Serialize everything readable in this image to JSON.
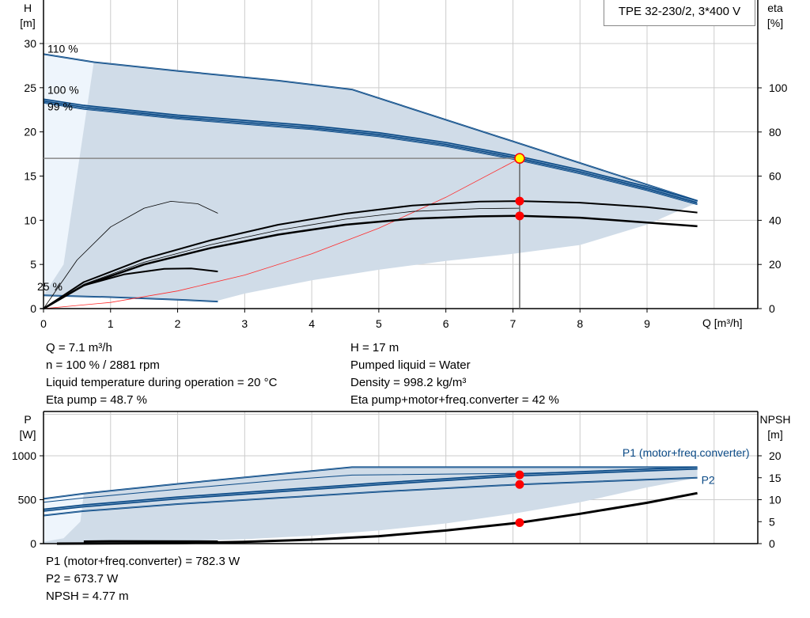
{
  "chart_data": [
    {
      "type": "line",
      "title": "TPE 32-230/2, 3*400 V",
      "xlabel": "Q [m³/h]",
      "ylabel_left": [
        "H",
        "[m]"
      ],
      "ylabel_right": [
        "eta",
        "[%]"
      ],
      "xlim": [
        0,
        10
      ],
      "ylim_left": [
        0,
        30
      ],
      "ylim_right": [
        0,
        120
      ],
      "xticks": [
        0,
        1,
        2,
        3,
        4,
        5,
        6,
        7,
        8,
        9
      ],
      "yticks_left": [
        0,
        5,
        10,
        15,
        20,
        25,
        30
      ],
      "yticks_right": [
        0,
        20,
        40,
        60,
        80,
        100
      ],
      "grid": true,
      "speed_labels": [
        {
          "text": "110 %",
          "x": 0,
          "y": 29.4
        },
        {
          "text": "100 %",
          "x": 0,
          "y": 24.6
        },
        {
          "text": "99 %",
          "x": 0,
          "y": 24.3
        },
        {
          "text": "25 %",
          "x": 0,
          "y": 2.5
        }
      ],
      "operating_area": {
        "upper": [
          [
            0,
            28.8
          ],
          [
            0.75,
            27.9
          ],
          [
            2,
            26.9
          ],
          [
            3.5,
            25.8
          ],
          [
            4.6,
            24.8
          ],
          [
            9.75,
            12.2
          ]
        ],
        "lower": [
          [
            9.75,
            12.0
          ],
          [
            9,
            9.5
          ],
          [
            8,
            7.2
          ],
          [
            7,
            6.2
          ],
          [
            6,
            5.4
          ],
          [
            5,
            4.4
          ],
          [
            4,
            3.2
          ],
          [
            3,
            1.7
          ],
          [
            2.6,
            0.9
          ]
        ],
        "lower_speed": [
          [
            2.6,
            0.8
          ],
          [
            1.5,
            1.1
          ],
          [
            0,
            1.5
          ]
        ]
      },
      "series": [
        {
          "axis": "left",
          "color": "#0b4a86",
          "width": 2,
          "points": [
            [
              0,
              28.8
            ],
            [
              0.75,
              27.9
            ],
            [
              2,
              26.9
            ],
            [
              3.5,
              25.8
            ],
            [
              4.6,
              24.8
            ],
            [
              9.75,
              12.2
            ]
          ]
        },
        {
          "axis": "left",
          "color": "#0b4a86",
          "width": 4,
          "points": [
            [
              0,
              23.6
            ],
            [
              0.6,
              22.9
            ],
            [
              2,
              21.8
            ],
            [
              3,
              21.2
            ],
            [
              4,
              20.6
            ],
            [
              5,
              19.8
            ],
            [
              6,
              18.7
            ],
            [
              7.1,
              17.1
            ],
            [
              8,
              15.6
            ],
            [
              9,
              13.7
            ],
            [
              9.75,
              12.1
            ]
          ]
        },
        {
          "axis": "left",
          "color": "#0b4a86",
          "width": 2,
          "points": [
            [
              0,
              23.3
            ],
            [
              0.6,
              22.6
            ],
            [
              2,
              21.5
            ],
            [
              3,
              20.9
            ],
            [
              4,
              20.3
            ],
            [
              5,
              19.5
            ],
            [
              6,
              18.4
            ],
            [
              7.1,
              16.8
            ],
            [
              8,
              15.3
            ],
            [
              9,
              13.4
            ],
            [
              9.75,
              11.8
            ]
          ]
        },
        {
          "axis": "left",
          "color": "#0b4a86",
          "width": 2,
          "points": [
            [
              0,
              1.5
            ],
            [
              1,
              1.3
            ],
            [
              2,
              1.0
            ],
            [
              2.6,
              0.8
            ]
          ]
        },
        {
          "axis": "left",
          "color": "#ff2a2a",
          "width": 0.8,
          "points": [
            [
              0,
              0
            ],
            [
              1,
              0.7
            ],
            [
              2,
              2.0
            ],
            [
              3,
              3.8
            ],
            [
              4,
              6.2
            ],
            [
              5,
              9.1
            ],
            [
              6,
              12.6
            ],
            [
              7.1,
              17
            ]
          ]
        },
        {
          "axis": "right",
          "color": "#000",
          "width": 2.5,
          "points": [
            [
              0,
              0
            ],
            [
              0.6,
              10.5
            ],
            [
              1.5,
              20
            ],
            [
              2.5,
              27.5
            ],
            [
              3.5,
              33.5
            ],
            [
              4.5,
              38
            ],
            [
              5.5,
              40.7
            ],
            [
              6.5,
              41.8
            ],
            [
              7.1,
              42
            ],
            [
              8,
              41.2
            ],
            [
              9,
              39
            ],
            [
              9.75,
              37.3
            ]
          ]
        },
        {
          "axis": "right",
          "color": "#000",
          "width": 2,
          "points": [
            [
              0,
              0
            ],
            [
              0.6,
              12
            ],
            [
              1.5,
              22.5
            ],
            [
              2.5,
              31
            ],
            [
              3.5,
              38
            ],
            [
              4.5,
              43
            ],
            [
              5.5,
              46.7
            ],
            [
              6.5,
              48.5
            ],
            [
              7.1,
              48.7
            ],
            [
              8,
              48
            ],
            [
              9,
              46
            ],
            [
              9.75,
              43.5
            ]
          ]
        },
        {
          "axis": "right",
          "color": "#000",
          "width": 0.8,
          "points": [
            [
              0,
              0
            ],
            [
              0.6,
              11
            ],
            [
              1.5,
              21
            ],
            [
              2.5,
              29
            ],
            [
              3.5,
              35.5
            ],
            [
              4.5,
              40.5
            ],
            [
              5.5,
              44
            ],
            [
              6.5,
              45.3
            ],
            [
              7.1,
              45.5
            ]
          ]
        },
        {
          "axis": "right",
          "color": "#000",
          "width": 0.8,
          "points": [
            [
              0,
              0
            ],
            [
              0.5,
              22
            ],
            [
              1,
              37
            ],
            [
              1.5,
              45.5
            ],
            [
              1.9,
              48.6
            ],
            [
              2.3,
              47.5
            ],
            [
              2.6,
              43.2
            ]
          ]
        },
        {
          "axis": "right",
          "color": "#000",
          "width": 2,
          "points": [
            [
              0.6,
              10.5
            ],
            [
              1.2,
              15.5
            ],
            [
              1.8,
              18
            ],
            [
              2.2,
              18.2
            ],
            [
              2.6,
              16.8
            ]
          ]
        }
      ],
      "operating_point": {
        "Q": 7.1,
        "H": 17,
        "eta_pump": 48.7,
        "eta_total": 42
      }
    },
    {
      "type": "line",
      "xlim": [
        0,
        10
      ],
      "ylabel_left": [
        "P",
        "[W]"
      ],
      "ylabel_right": [
        "NPSH",
        "[m]"
      ],
      "ylim_left": [
        0,
        1500
      ],
      "ylim_right": [
        0,
        30
      ],
      "yticks_left": [
        0,
        500,
        1000
      ],
      "yticks_right": [
        0,
        5,
        10,
        15,
        20
      ],
      "grid": true,
      "series_labels": [
        {
          "text": "P1 (motor+freq.converter)",
          "x": 9.4,
          "y": 990
        },
        {
          "text": "P2",
          "x": 9.6,
          "y": 680
        }
      ],
      "operating_area": {
        "upper": [
          [
            0,
            510
          ],
          [
            0.6,
            570
          ],
          [
            2,
            680
          ],
          [
            3.5,
            790
          ],
          [
            4.6,
            870
          ],
          [
            9.75,
            870
          ]
        ],
        "lower": [
          [
            9.75,
            750
          ],
          [
            9,
            640
          ],
          [
            8,
            470
          ],
          [
            7,
            340
          ],
          [
            6,
            230
          ],
          [
            5,
            150
          ],
          [
            4,
            90
          ],
          [
            3,
            50
          ],
          [
            2,
            30
          ],
          [
            0.7,
            10
          ]
        ]
      },
      "series": [
        {
          "axis": "left",
          "color": "#0b4a86",
          "width": 2,
          "points": [
            [
              0,
              510
            ],
            [
              0.6,
              570
            ],
            [
              2,
              680
            ],
            [
              3.5,
              790
            ],
            [
              4.6,
              870
            ],
            [
              9.75,
              870
            ]
          ]
        },
        {
          "axis": "left",
          "color": "#0b4a86",
          "width": 1,
          "points": [
            [
              0,
              470
            ],
            [
              0.6,
              520
            ],
            [
              2,
              620
            ],
            [
              3.5,
              720
            ],
            [
              4.6,
              780
            ],
            [
              7.1,
              800
            ],
            [
              9.75,
              850
            ]
          ]
        },
        {
          "axis": "left",
          "color": "#0b4a86",
          "width": 4,
          "points": [
            [
              0,
              380
            ],
            [
              0.6,
              430
            ],
            [
              2,
              520
            ],
            [
              3.5,
              600
            ],
            [
              5,
              680
            ],
            [
              7.1,
              782
            ],
            [
              9.75,
              860
            ]
          ]
        },
        {
          "axis": "left",
          "color": "#0b4a86",
          "width": 2,
          "points": [
            [
              0,
              320
            ],
            [
              0.6,
              370
            ],
            [
              2,
              450
            ],
            [
              3.5,
              520
            ],
            [
              5,
              590
            ],
            [
              7.1,
              674
            ],
            [
              9.75,
              750
            ]
          ]
        },
        {
          "axis": "left",
          "color": "#000",
          "width": 2.5,
          "points": [
            [
              0.6,
              25
            ],
            [
              1,
              28
            ],
            [
              2.6,
              25
            ]
          ]
        },
        {
          "axis": "right",
          "color": "#000",
          "width": 3,
          "points": [
            [
              0.2,
              0
            ],
            [
              2,
              0.1
            ],
            [
              3,
              0.4
            ],
            [
              4,
              0.9
            ],
            [
              5,
              1.7
            ],
            [
              6,
              3.0
            ],
            [
              7.1,
              4.77
            ],
            [
              8,
              6.8
            ],
            [
              9,
              9.3
            ],
            [
              9.75,
              11.5
            ]
          ]
        }
      ],
      "operating_point": {
        "Q": 7.1,
        "P1": 782.3,
        "P2": 673.7,
        "NPSH": 4.77
      }
    }
  ],
  "info_top": {
    "left": [
      "Q = 7.1 m³/h",
      "n = 100 % / 2881 rpm",
      "Liquid temperature during operation = 20 °C",
      "Eta pump = 48.7 %"
    ],
    "right": [
      "H = 17 m",
      "Pumped liquid = Water",
      "Density = 998.2 kg/m³",
      "Eta pump+motor+freq.converter = 42 %"
    ]
  },
  "info_bottom": [
    "P1 (motor+freq.converter) = 782.3 W",
    "P2 = 673.7 W",
    "NPSH = 4.77 m"
  ],
  "colors": {
    "curve": "#0b4a86",
    "area": "#d0dce8",
    "area_light": "#eef5fc",
    "grid": "#cccccc",
    "op_point": "#ffff00",
    "marker": "#ff0000"
  }
}
